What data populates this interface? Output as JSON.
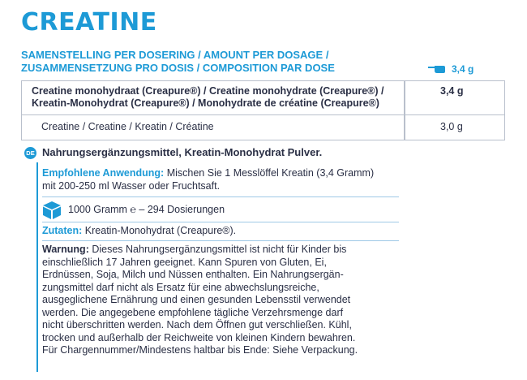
{
  "title": "CREATINE",
  "dose_header": {
    "line1": "SAMENSTELLING PER DOSERING / AMOUNT PER DOSAGE /",
    "line2": "ZUSAMMENSETZUNG PRO DOSIS / COMPOSITION PAR DOSE",
    "scoop_amount": "3,4 g"
  },
  "table": {
    "row1": {
      "label_line1": "Creatine monohydraat (Creapure®) / Creatine monohydrate (Creapure®) /",
      "label_line2": "Kreatin-Monohydrat (Creapure®) / Monohydrate de créatine (Creapure®)",
      "value": "3,4 g"
    },
    "row2": {
      "label": "Creatine / Creatine / Kreatin / Créatine",
      "value": "3,0 g"
    }
  },
  "language_badge": "DE",
  "product_name": "Nahrungsergänzungsmittel, Kreatin-Monohydrat Pulver.",
  "usage": {
    "label": "Empfohlene Anwendung:",
    "text_line1": " Mischen Sie 1 Messlöffel Kreatin (3,4 Gramm)",
    "text_line2": "mit 200-250 ml Wasser oder Fruchtsaft."
  },
  "quantity": {
    "text": "1000 Gramm ℮ – 294 Dosierungen",
    "icon": "package-box-icon"
  },
  "ingredients": {
    "label": "Zutaten:",
    "text": " Kreatin-Monohydrat (Creapure®)."
  },
  "warning": {
    "label": "Warnung:",
    "lines": [
      " Dieses Nahrungsergänzungsmittel ist nicht für Kinder bis",
      "einschließlich 17 Jahren geeignet. Kann Spuren von Gluten, Ei,",
      "Erdnüssen, Soja, Milch und Nüssen enthalten. Ein Nahrungsergän-",
      "zungsmittel darf nicht als Ersatz für eine abwechslungsreiche,",
      "ausgeglichene Ernährung und einen gesunden Lebensstil verwendet",
      "werden. Die angegebene empfohlene tägliche Verzehrsmenge darf",
      "nicht überschritten werden. Nach dem Öffnen gut verschließen. Kühl,",
      "trocken und außerhalb der Reichweite von kleinen Kindern bewahren.",
      "Für Chargennummer/Mindestens haltbar bis Ende: Siehe Verpackung."
    ]
  },
  "colors": {
    "accent": "#1d9ad6",
    "text": "#2a2f45",
    "border": "#b9c0cc"
  }
}
